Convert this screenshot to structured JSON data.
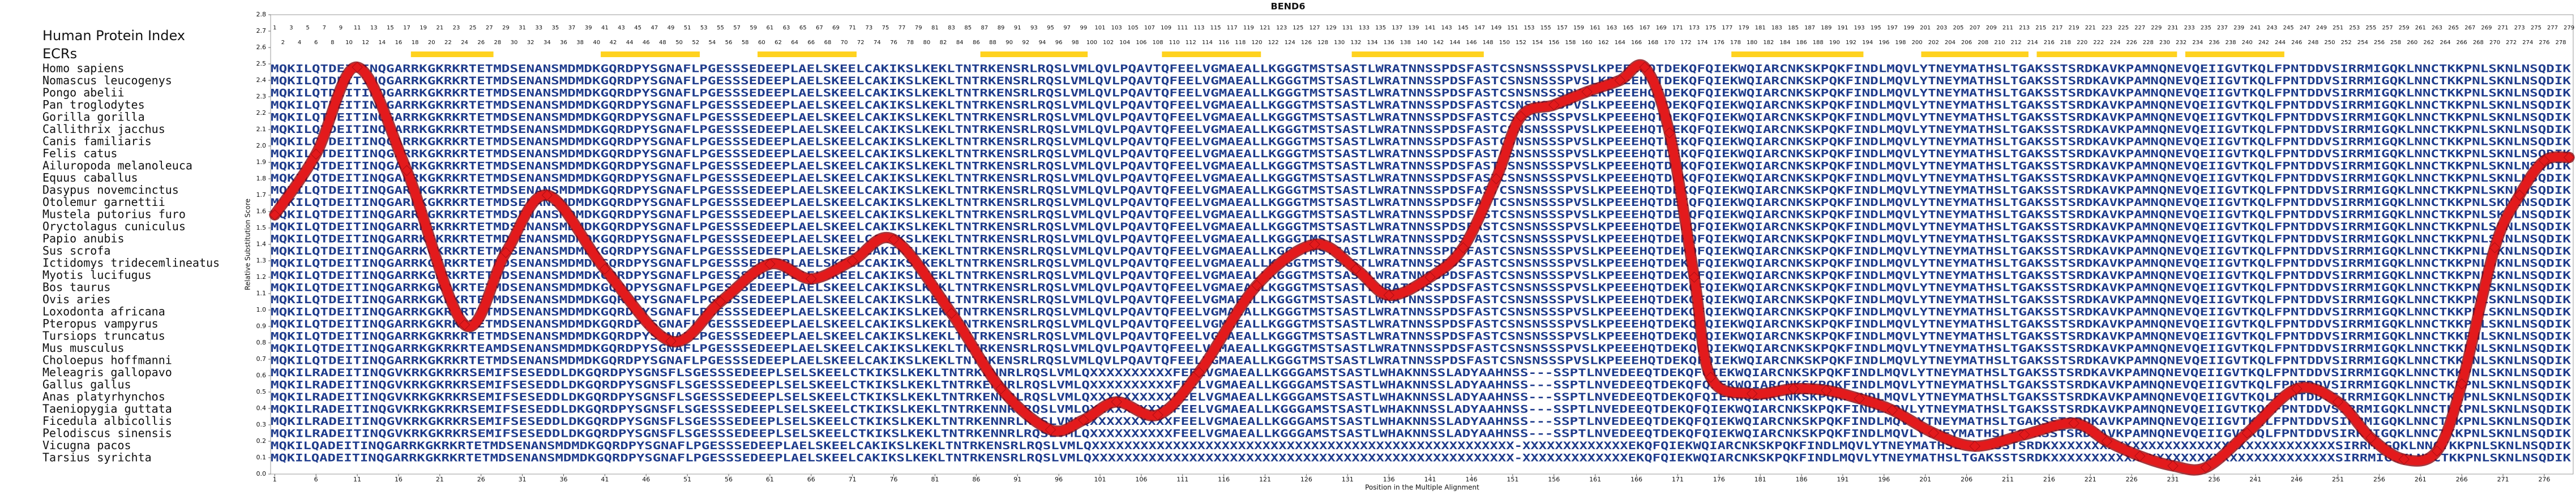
{
  "chart_data": {
    "type": "line",
    "title": "BEND6",
    "xlabel": "Position in the Multiple Alignment",
    "ylabel": "Relative Substitution Score",
    "index_label": "Human Protein Index",
    "ecr_label": "ECRs",
    "ecr_color": "#ffd21f",
    "ecrs": [
      [
        18,
        27
      ],
      [
        41,
        52
      ],
      [
        60,
        71
      ],
      [
        87,
        99
      ],
      [
        109,
        120
      ],
      [
        132,
        147
      ],
      [
        178,
        193
      ],
      [
        201,
        213
      ],
      [
        215,
        231
      ],
      [
        233,
        244
      ]
    ],
    "color": "#e31a1c",
    "x": [
      1,
      6,
      11,
      17,
      24,
      29,
      34,
      41,
      49,
      55,
      61,
      66,
      71,
      76,
      83,
      89,
      95,
      99,
      103,
      108,
      113,
      120,
      127,
      132,
      136,
      141,
      145,
      149,
      152,
      156,
      160,
      164,
      167,
      170,
      173,
      175,
      180,
      185,
      189,
      193,
      197,
      202,
      207,
      213,
      219,
      223,
      227,
      231,
      235,
      240,
      246,
      251,
      255,
      259,
      263,
      266,
      270,
      273,
      276,
      279
    ],
    "values": [
      1.58,
      1.95,
      2.48,
      1.85,
      0.91,
      1.35,
      1.7,
      1.25,
      0.81,
      1.05,
      1.28,
      1.19,
      1.3,
      1.43,
      0.98,
      0.52,
      0.27,
      0.33,
      0.44,
      0.36,
      0.62,
      1.15,
      1.4,
      1.25,
      1.09,
      1.2,
      1.38,
      1.8,
      2.18,
      2.25,
      2.33,
      2.4,
      2.48,
      2.08,
      1.2,
      0.59,
      0.49,
      0.52,
      0.51,
      0.46,
      0.39,
      0.25,
      0.17,
      0.24,
      0.31,
      0.2,
      0.11,
      0.05,
      0.04,
      0.25,
      0.52,
      0.44,
      0.22,
      0.09,
      0.14,
      0.55,
      1.38,
      1.7,
      1.91,
      1.93
    ],
    "xlim": [
      0.5,
      279.5
    ],
    "ylim": [
      0,
      2.8
    ],
    "xticks": [
      1,
      6,
      11,
      16,
      21,
      26,
      31,
      36,
      41,
      46,
      51,
      56,
      61,
      66,
      71,
      76,
      81,
      86,
      91,
      96,
      101,
      106,
      111,
      116,
      121,
      126,
      131,
      136,
      141,
      146,
      151,
      156,
      161,
      166,
      171,
      176,
      181,
      186,
      191,
      196,
      201,
      206,
      211,
      216,
      221,
      226,
      231,
      236,
      241,
      246,
      251,
      256,
      261,
      266,
      271,
      276
    ],
    "yticks": [
      {
        "value": 0,
        "label": "0.0"
      },
      0.1,
      0.2,
      0.3,
      0.4,
      0.5,
      0.6,
      0.7,
      0.8,
      0.9,
      {
        "value": 1,
        "label": "1.0"
      },
      1.1,
      1.2,
      1.3,
      1.4,
      1.5,
      1.6,
      1.7,
      1.8,
      1.9,
      {
        "value": 2,
        "label": "2.0"
      },
      2.1,
      2.2,
      2.3,
      2.4,
      2.5,
      2.6,
      2.7,
      2.8
    ],
    "protein_index": [
      1,
      2,
      3,
      4,
      5,
      6,
      7,
      8,
      9,
      10,
      11,
      12,
      13,
      14,
      15,
      16,
      17,
      18,
      19,
      20,
      21,
      22,
      23,
      24,
      25,
      26,
      27,
      28,
      29,
      30,
      31,
      32,
      33,
      34,
      35,
      36,
      37,
      38,
      39,
      40,
      41,
      42,
      43,
      44,
      45,
      46,
      47,
      48,
      49,
      50,
      51,
      52,
      53,
      54,
      55,
      56,
      57,
      58,
      59,
      60,
      61,
      62,
      63,
      64,
      65,
      66,
      67,
      68,
      69,
      70,
      71,
      72,
      73,
      74,
      75,
      76,
      77,
      78,
      79,
      80,
      81,
      82,
      83,
      84,
      85,
      86,
      87,
      88,
      89,
      90,
      91,
      92,
      93,
      94,
      95,
      96,
      97,
      98,
      99,
      100,
      101,
      102,
      103,
      104,
      105,
      106,
      107,
      108,
      109,
      110,
      111,
      112,
      113,
      114,
      115,
      116,
      117,
      118,
      119,
      120,
      121,
      122,
      123,
      124,
      125,
      126,
      127,
      128,
      129,
      130,
      131,
      132,
      133,
      134,
      135,
      136,
      137,
      138,
      139,
      140,
      141,
      142,
      143,
      144,
      145,
      146,
      147,
      148,
      149,
      150,
      151,
      152,
      153,
      154,
      155,
      156,
      157,
      158,
      159,
      160,
      161,
      162,
      163,
      164,
      165,
      166,
      167,
      168,
      169,
      170,
      171,
      172,
      173,
      174,
      175,
      176,
      177,
      178,
      179,
      180,
      181,
      182,
      183,
      184,
      185,
      186,
      187,
      188,
      189,
      190,
      191,
      192,
      193,
      194,
      195,
      196,
      197,
      198,
      199,
      200,
      201,
      202,
      203,
      204,
      205,
      206,
      207,
      208,
      209,
      210,
      211,
      212,
      213,
      214,
      215,
      216,
      217,
      218,
      219,
      220,
      221,
      222,
      223,
      224,
      225,
      226,
      227,
      228,
      229,
      230,
      231,
      232,
      233,
      234,
      235,
      236,
      237,
      238,
      239,
      240,
      241,
      242,
      243,
      244,
      245,
      246,
      247,
      248,
      249,
      250,
      251,
      252,
      253,
      254,
      255,
      256,
      257,
      258,
      259,
      260,
      261,
      262,
      263,
      264,
      265,
      266,
      267,
      268,
      269,
      270,
      271,
      272,
      273,
      274,
      275,
      276,
      277,
      278,
      279
    ],
    "species": [
      "Homo sapiens",
      "Nomascus leucogenys",
      "Pongo abelii",
      "Pan troglodytes",
      "Gorilla gorilla",
      "Callithrix jacchus",
      "Canis familiaris",
      "Felis catus",
      "Ailuropoda melanoleuca",
      "Equus caballus",
      "Dasypus novemcinctus",
      "Otolemur garnettii",
      "Mustela putorius furo",
      "Oryctolagus cuniculus",
      "Papio anubis",
      "Sus scrofa",
      "Ictidomys tridecemlineatus",
      "Myotis lucifugus",
      "Bos taurus",
      "Ovis aries",
      "Loxodonta africana",
      "Pteropus vampyrus",
      "Tursiops truncatus",
      "Mus musculus",
      "Choloepus hoffmanni",
      "Meleagris gallopavo",
      "Gallus gallus",
      "Anas platyrhynchos",
      "Taeniopygia guttata",
      "Ficedula albicollis",
      "Pelodiscus sinensis",
      "Vicugna pacos",
      "Tarsius syrichta"
    ],
    "sequences": [
      "MQKILQTDEITINQGARRKGKRKRTETMDSENANSMDMDKGQRDPYSGNAFLPGESSSEDEEPLAELSKEELCAKIKSLKEKLTNTRKENSRLRQSLVMLQVLPQAVTQFEELVGMAEALLKGGGTMSTSASTLWRATNNSSPDSFASTCSNSNSSSPVSLKPEEEHQTDEKQFQIEKWQIARCNKSKPQKFINDLMQVLYTNEYMATHSLTGAKSSTSRDKAVKPAMNQNEVQEIIGVTKQLFPNTDDVSIRRMIGQKLNNCTKKPNLSKNLNSQDIK",
      "MQKILQTDEITINQGARRKGKRKRTETMDSENANSMDMDKGQRDPYSGNAFLPGESSSEDEEPLAELSKEELCAKIKSLKEKLTNTRKENSRLRQSLVMLQVLPQAVTQFEELVGMAEALLKGGGTMSTSASTLWRATNNSSPDSFASTCSNSNSSSPVSLKPEEEHQTDEKQFQIEKWQIARCNKSKPQKFINDLMQVLYTNEYMATHSLTGAKSSTSRDKAVKPAMNQNEVQEIIGVTKQLFPNTDDVSIRRMIGQKLNNCTKKPNLSKNLNSQDIK",
      "MQKILQTDEITINQGARRKGKRKRTETMDSENANSMDMDKGQRDPYSGNAFLPGESSSEDEEPLAELSKEELCAKIKSLKEKLTNTRKENSRLRQSLVMLQVLPQAVTQFEELVGMAEALLKGGGTMSTSASTLWRATNNSSPDSFASTCSNSNSSSPVSLKPEEEHQTDEKQFQIEKWQIARCNKSKPQKFINDLMQVLYTNEYMATHSLTGAKSSTSRDKAVKPAMNQNEVQEIIGVTKQLFPNTDDVSIRRMIGQKLNNCTKKPNLSKNLNSQDIK",
      "MQKILQTDEITINQGARRKGKRKRTETMDSENANSMDMDKGQRDPYSGNAFLPGESSSEDEEPLAELSKEELCAKIKSLKEKLTNTRKENSRLRQSLVMLQVLPQAVTQFEELVGMAEALLKGGGTMSTSASTLWRATNNSSPDSFASTCSNSNSSSPVSLKPEEEHQTDEKQFQIEKWQIARCNKSKPQKFINDLMQVLYTNEYMATHSLTGAKSSTSRDKAVKPAMNQNEVQEIIGVTKQLFPNTDDVSIRRMIGQKLNNCTKKPNLSKNLNSQDIK",
      "MQKILQTDEITINQGARRKGKRKRTETMDSENANSMDMDKGQRDPYSGNAFLPGESSSEDEEPLAELSKEELCAKIKSLKEKLTNTRKENSRLRQSLVMLQVLPQAVTQFEELVGMAEALLKGGGTMSTSASTLWRATNNSSPDSFASTCSNSNSSSPVSLKPEEEHQTDEKQFQIEKWQIARCNKSKPQKFINDLMQVLYTNEYMATHSLTGAKSSTSRDKAVKPAMNQNEVQEIIGVTKQLFPNTDDVSIRRMIGQKLNNCTKKPNLSKNLNSQDIK",
      "MQKILQTDEITINQGARRKGKRKRTETMDSENANSMDMDKGQRDPYSGNAFLPGESSSEDEEPLAELSKEELCAKIKSLKEKLTNTRKENSRLRQSLVMLQVLPQAVTQFEELVGMAEALLKGGGTMSTSASTLWRATNNSSPDSFASTCSNSNSSSPVSLKPEEEHQTDEKQFQIEKWQIARCNKSKPQKFINDLMQVLYTNEYMATHSLTGAKSSTSRDKAVKPAMNQNEVQEIIGVTKQLFPNTDDVSIRRMIGQKLNNCTKKPNLSKNLNSQDIK",
      "MQKILQTDEITINQGARRKGKRKRTETMDSENANSMDMDKGQRDPYSGNAFLPGESSSEDEEPLAELSKEELCAKIKSLKEKLTNTRKENSRLRQSLVMLQVLPQAVTQFEELVGMAEALLKGGGTMSTSASTLWRATNNSSPDSFASTCSNSNSSSPVSLKPEEEHQTDEKQFQIEKWQIARCNKSKPQKFINDLMQVLYTNEYMATHSLTGAKSSTSRDKAVKPAMNQNEVQEIIGVTKQLFPNTDDVSIRRMIGQKLNNCTKKPNLSKNLNSQDIK",
      "MQKILQTDEITINQGARRKGKRKRTETMDSENANSMDMDKGQRDPYSGNAFLPGESSSEDEEPLAELSKEELCAKIKSLKEKLTNTRKENSRLRQSLVMLQVLPQAVTQFEELVGMAEALLKGGGTMSTSASTLWRATNNSSPDSFASTCSNSNSSSPVSLKPEEEHQTDEKQFQIEKWQIARCNKSKPQKFINDLMQVLYTNEYMATHSLTGAKSSTSRDKAVKPAMNQNEVQEIIGVTKQLFPNTDDVSIRRMIGQKLNNCTKKPNLSKNLNSQDIK",
      "MQKILQTDEITINQGARRKGKRKRTETMDSENANSMDMDKGQRDPYSGNAFLPGESSSEDEEPLAELSKEELCAKIKSLKEKLTNTRKENSRLRQSLVMLQVLPQAVTQFEELVGMAEALLKGGGTMSTSASTLWRATNNSSPDSFASTCSNSNSSSPVSLKPEEEHQTDEKQFQIEKWQIARCNKSKPQKFINDLMQVLYTNEYMATHSLTGAKSSTSRDKAVKPAMNQNEVQEIIGVTKQLFPNTDDVSIRRMIGQKLNNCTKKPNLSKNLNSQDIK",
      "MQKILQTDEITINQGARRKGKRKRTETMDSENANSMDMDKGQRDPYSGNAFLPGESSSEDEEPLAELSKEELCAKIKSLKEKLTNTRKENSRLRQSLVMLQVLPQAVTQFEELVGMAEALLKGGGTMSTSASTLWRATNNSSPDSFASTCSNSNSSSPVSLKPEEEHQTDEKQFQIEKWQIARCNKSKPQKFINDLMQVLYTNEYMATHSLTGAKSSTSRDKAVKPAMNQNEVQEIIGVTKQLFPNTDDVSIRRMIGQKLNNCTKKPNLSKNLNSQDIK",
      "MQKILQTDEITINQGARRKGKRKRTETMDSENANSMDMDKGQRDPYSGNAFLPGESSSEDEEPLAELSKEELCAKIKSLKEKLTNTRKENSRLRQSLVMLQVLPQAVTQFEELVGMAEALLKGGGTMSTSASTLWRATNNSSPDSFASTCSNSNSSSPVSLKPEEEHQTDEKQFQIEKWQIARCNKSKPQKFINDLMQVLYTNEYMATHSLTGAKSSTSRDKAVKPAMNQNEVQEIIGVTKQLFPNTDDVSIRRMIGQKLNNCTKKPNLSKNLNSQDIK",
      "MQKILQTDEITINQGARRKGKRKRTETMDSENANSMDMDKGQRDPYSGNAFLPGESSSEDEEPLAELSKEELCAKIKSLKEKLTNTRKENSRLRQSLVMLQVLPQAVTQFEELVGMAEALLKGGGTMSTSASTLWRATNNSSPDSFASTCSNSNSSSPVSLKPEEEHQTDEKQFQIEKWQIARCNKSKPQKFINDLMQVLYTNEYMATHSLTGAKSSTSRDKAVKPAMNQNEVQEIIGVTKQLFPNTDDVSIRRMIGQKLNNCTKKPNLSKNLNSQDIK",
      "MQKILQTDEITINQGARRKGKRKRTETMDSENANSMDMDKGQRDPYSGNAFLPGESSSEDEEPLAELSKEELCAKIKSLKEKLTNTRKENSRLRQSLVMLQVLPQAVTQFEELVGMAEALLKGGGTMSTSASTLWRATNNSSPDSFASTCSNSNSSSPVSLKPEEEHQTDEKQFQIEKWQIARCNKSKPQKFINDLMQVLYTNEYMATHSLTGAKSSTSRDKAVKPAMNQNEVQEIIGVTKQLFPNTDDVSIRRMIGQKLNNCTKKPNLSKNLNSQDIK",
      "MQKILQTDEITINQGARRKGKRKRTETMDSENANSMDMDKGQRDPYSGNAFLPGESSSEDEEPLAELSKEELCAKIKSLKEKLTNTRKENSRLRQSLVMLQVLPQAVTQFEELVGMAEALLKGGGTMSTSASTLWRATNNSSPDSFASTCSNSNSSSPVSLKPEEEHQTDEKQFQIEKWQIARCNKSKPQKFINDLMQVLYTNEYMATHSLTGAKSSTSRDKAVKPAMNQNEVQEIIGVTKQLFPNTDDVSIRRMIGQKLNNCTKKPNLSKNLNSQDIK",
      "MQKILQTDEITINQGARRKGKRKRTETMDSENANSMDMDKGQRDPYSGNAFLPGESSSEDEEPLAELSKEELCAKIKSLKEKLTNTRKENSRLRQSLVMLQVLPQAVTQFEELVGMAEALLKGGGTMSTSASTLWRATNNSSPDSFASTCSNSNSSSPVSLKPEEEHQTDEKQFQIEKWQIARCNKSKPQKFINDLMQVLYTNEYMATHSLTGAKSSTSRDKAVKPAMNQNEVQEIIGVTKQLFPNTDDVSIRRMIGQKLNNCTKKPNLSKNLNSQDIK",
      "MQKILQTDEITINQGARRKGKRKRTETMDSENANSMDMDKGQRDPYSGNAFLPGESSSEDEEPLAELSKEELCAKIKSLKEKLTNTRKENSRLRQSLVMLQVLPQAVTQFEELVGMAEALLKGGGTMSTSASTLWRATNNSSPDSFASTCSNSNSSSPVSLKPEEEHQTDEKQFQIEKWQIARCNKSKPQKFINDLMQVLYTNEYMATHSLTGAKSSTSRDKAVKPAMNQNEVQEIIGVTKQLFPNTDDVSIRRMIGQKLNNCTKKPNLSKNLNSQDIK",
      "MQKILQTDEITINQGARRKGKRKRTETMDSENANSMDMDKGQRDPYSGNAFLPGESSSEDEEPLAELSKEELCAKIKSLKEKLTNTRKENSRLRQSLVMLQVLPQAVTQFEELVGMAEALLKGGGTMSTSASTLWRATNNSSPDSFASTCSNSNSSSPVSLKPEEEHQTDEKQFQIEKWQIARCNKSKPQKFINDLMQVLYTNEYMATHSLTGAKSSTSRDKAVKPAMNQNEVQEIIGVTKQLFPNTDDVSIRRMIGQKLNNCTKKPNLSKNLNSQDIK",
      "MQKILQTDEITINQGARRKGKRKRTETMDSENANSMDMDKGQRDPYSGNAFLPGESSSEDEEPLAELSKEELCAKIKSLKEKLTNTRKENSRLRQSLVMLQVLPQAVTQFEELVGMAEALLKGGGTMSTSASTLWRATNNSSPDSFASTCSNSNSSSPVSLKPEEEHQTDEKQFQIEKWQIARCNKSKPQKFINDLMQVLYTNEYMATHSLTGAKSSTSRDKAVKPAMNQNEVQEIIGVTKQLFPNTDDVSIRRMIGQKLNNCTKKPNLSKNLNSQDIK",
      "MQKILQTDEITINQGARRKGKRKRTETMDSENANSMDMDKGQRDPYSGNAFLPGESSSEDEEPLAELSKEELCAKIKSLKEKLTNTRKENSRLRQSLVMLQVLPQAVTQFEELVGMAEALLKGGGTMSTSASTLWRATNNSSPDSFASTCSNSNSSSPVSLKPEEEHQTDEKQFQIEKWQIARCNKSKPQKFINDLMQVLYTNEYMATHSLTGAKSSTSRDKAVKPAMNQNEVQEIIGVTKQLFPNTDDVSIRRMIGQKLNNCTKKPNLSKNLNSQDIK",
      "MQKILQTDEITINQGARRKGKRKRTETMDSENANSMDMDKGQRDPYSGNAFLPGESSSEDEEPLAELSKEELCAKIKSLKEKLTNTRKENSRLRQSLVMLQVLPQAVTQFEELVGMAEALLKGGGTMSTSASTLWRATNNSSPDSFASTCSNSNSSSPVSLKPEEEHQTDEKQFQIEKWQIARCNKSKPQKFINDLMQVLYTNEYMATHSLTGAKSSTSRDKAVKPAMNQNEVQEIIGVTKQLFPNTDDVSIRRMIGQKLNNCTKKPNLSKNLNSQDIK",
      "MQKILQTDEITINQGARRKGKRKRTETMDSENANSMDMDKGQRDPYSGNAFLPGESSSEDEEPLAELSKEELCAKIKSLKEKLTNTRKENSRLRQSLVMLQVLPQAVTQFEELVGMAEALLKGGGTMSTSASTLWRATNNSSPDSFASTCSNSNSSSPVSLKPEEEHQTDEKQFQIEKWQIARCNKSKPQKFINDLMQVLYTNEYMATHSLTGAKSSTSRDKAVKPAMNQNEVQEIIGVTKQLFPNTDDVSIRRMIGQKLNNCTKKPNLSKNLNSQDIK",
      "MQKILQTDEITINQGARRKGKRKRTETMDSENANSMDMDKGQRDPYSGNAFLPGESSSEDEEPLAELSKEELCAKIKSLKEKLTNTRKENSRLRQSLVMLQVLPQAVTQFEELVGMAEALLKGGGTMSTSASTLWRATNNSSPDSFASTCSNSNSSSPVSLKPEEEHQTDEKQFQIEKWQIARCNKSKPQKFINDLMQVLYTNEYMATHSLTGAKSSTSRDKAVKPAMNQNEVQEIIGVTKQLFPNTDDVSIRRMIGQKLNNCTKKPNLSKNLNSQDIK",
      "MQKILQTDEITINQGARRKGKRKRTETMDSENANSMDMDKGQRDPYSGNAFLPGESSSEDEEPLAELSKEELCAKIKSLKEKLTNTRKENSRLRQSLVMLQVLPQAVTQFEELVGMAEALLKGGGTMSTSASTLWRATNNSSPDSFASTCSNSNSSSPVSLKPEEEHQTDEKQFQIEKWQIARCNKSKPQKFINDLMQVLYTNEYMATHSLTGAKSSTSRDKAVKPAMNQNEVQEIIGVTKQLFPNTDDVSIRRMIGQKLNNCTKKPNLSKNLNSQDIK",
      "MQKILQTDEITINQGARRKGKRKRTEAMDSENANSMDMDKGQRDPYSGNAFLPGESSSEDEEPLAELSKEELCAKIKSLKEKLTNTRKENSRLRQSLVMLQVLPQAVTQFEELVGMAEALLKGGGTMSTSASTLWRATNNSSPDSFASTCSNSNSSSPVSLKPEEEHQTDEKQFQIEKWQIARCNKSKPQKFINDLMQVLYTNEYMATHSLTGAKSSTSRDKAVKPAMNQNEVQEIIGVTKQLFPNTDDVSIRRMIGQKLNNCTKKPNLSKNLNSQDIK",
      "MQKILQTDEITINQGARRKGKRKRTETMDSENANSMDMDKGQRDPYSGNAFLPGESSSEDEEPLAELSKEELCAKIKSLKEKLTNTRKENSRLRQSLVMLQVLPQAVTQFEELVGMAEALLKGGGTMSTSASTLWRATNNSSPDSFASTCSNSNSSSPVSLKPEEEHQTDEKQFQIEKWQIARCNKSKPQKFINDLMQVLYTNEYMATHSLTGAKSSTSRDKAVKPAMNQNEVQEIIGVTKQLFPNTDDVSIRRMIGQKLNNCTKKPNLSKNLNSQDIK",
      "MQKILRADEITINQGVKRKGKRKRSEMIFSESEDDLDKGQRDPYSGNSFLSGESSSEDEEPLSELSKEELCTKIKSLKEKLTNTRKENNRLRQSLVMLQXXXXXXXXXXFEELVGMAEALLKGGGAMSTSASTLWHAKNNSSLADYAAHNSS---SSPTLNVEDEEQTDEKQFQIEKWQIARCNKSKPQKFINDLMQVLYTNEYMATHSLTGAKSSTSRDKAVKPAMNQNEVQEIIGVTKQLFPNTDDVSIRRMIGQKLNNCTKKPNLSKNLNSQDIK",
      "MQKILRADEITINQGVKRKGKRKRSEMIFSESEDDLDKGQRDPYSGNSFLSGESSSEDEEPLSELSKEELCTKIKSLKEKLTNTRKENNRLRQSLVMLQXXXXXXXXXXFEELVGMAEALLKGGGAMSTSASTLWHAKNNSSLADYAAHNSS---SSPTLNVEDEEQTDEKQFQIEKWQIARCNKSKPQKFINDLMQVLYTNEYMATHSLTGAKSSTSRDKAVKPAMNQNEVQEIIGVTKQLFPNTDDVSIRRMIGQKLNNCTKKPNLSKNLNSQDIK",
      "MQKILRADEITINQGVKRKGKRKRSEMIFSESEDDLDKGQRDPYSGNSFLSGESSSEDEEPLSELSKEELCTKIKSLKEKLTNTRKENNRLRQSLVMLQXXXXXXXXXXFEELVGMAEALLKGGGAMSTSASTLWHAKNNSSLADYAAHNSS---SSPTLNVEDEEQTDEKQFQIEKWQIARCNKSKPQKFINDLMQVLYTNEYMATHSLTGAKSSTSRDKAVKPAMNQNEVQEIIGVTKQLFPNTDDVSIRRMIGQKLNNCTKKPNLSKNLNSQDIK",
      "MQKILRADEITINQGVKRKGKRKRSEMIFSESEDDLDKGQRDPYSGNSFLSGESSSEDEEPLSELSKEELCTKIKSLKEKLTNTRKENNRLRQSLVMLQXXXXXXXXXXFEELVGMAEALLKGGGAMSTSASTLWHAKNNSSLADYAAHNSS---SSPTLNVEDEEQTDEKQFQIEKWQIARCNKSKPQKFINDLMQVLYTNEYMATHSLTGAKSSTSRDKAVKPAMNQNEVQEIIGVTKQLFPNTDDVSIRRMIGQKLNNCTKKPNLSKNLNSQDIK",
      "MQKILRADEITINQGVKRKGKRKRSEMIFSESEDDLDKGQRDPYSGNSFLSGESSSEDEEPLSELSKEELCTKIKSLKEKLTNTRKENNRLRQSLVMLQXXXXXXXXXXFEELVGMAEALLKGGGAMSTSASTLWHAKNNSSLADYAAHNSS---SSPTLNVEDEEQTDEKQFQIEKWQIARCNKSKPQKFINDLMQVLYTNEYMATHSLTGAKSSTSRDKAVKPAMNQNEVQEIIGVTKQLFPNTDDVSIRRMIGQKLNNCTKKPNLSKNLNSQDIK",
      "MQKILRADEITINQGVKRKGKRKRSEMIFSESEDDLDKGQRDPYSGNSFLSGESSSEDEEPLSELSKEELCTKIKSLKEKLTNTRKENNRLRQSLVMLQXXXXXXXXXXFEELVGMAEALLKGGGAMSTSASTLWHAKNNSSLADYAAHNSS---SSPTLNVEDEEQTDEKQFQIEKWQIARCNKSKPQKFINDLMQVLYTNEYMATHSLTGAKSSTSRDKAVKPAMNQNEVQEIIGVTKQLFPNTDDVSIRRMIGQKLNNCTKKPNLSKNLNSQDIK",
      "MQKILQADEITINQGARRKGKRKRTETMDSENANSMDMDKGQRDPYSGNAFLPGESSSEDEEPLAELSKEELCAKIKSLKEKLTNTRKENSRLRQSLVMLQXXXXXXXXXXXXXXXXXXXXXXXXXXXXXXXXXXXXXXXXXXXXXXXXXXXX-XXXXXXXXXXXXXEKQFQIEKWQIARCNKSKPQKFINDLMQVLYTNEYMATHSLTGAKSSTSRDKXXXXXXXXXXXXXXXXXXXXXXXXXXXXXXXXXXXSIRRMIGQKLNNCTKKPNLSKNLNSQDIK",
      "MQKILQADEITINQGARRKGKRKRTETMDSENANSMDMDKGQRDPYSGNAFLPGESSSEDEEPLAELSKEELCAKIKSLKEKLTNTRKENSRLRQSLVMLQXXXXXXXXXXXXXXXXXXXXXXXXXXXXXXXXXXXXXXXXXXXXXXXXXXXX-XXXXXXXXXXXXXEKQFQIEKWQIARCNKSKPQKFINDLMQVLYTNEYMATHSLTGAKSSTSRDKXXXXXXXXXXXXXXXXXXXXXXXXXXXXXXXXXXXSIRRMIGQKLNNCTKKPNLSKNLNSQDIK"
    ]
  }
}
